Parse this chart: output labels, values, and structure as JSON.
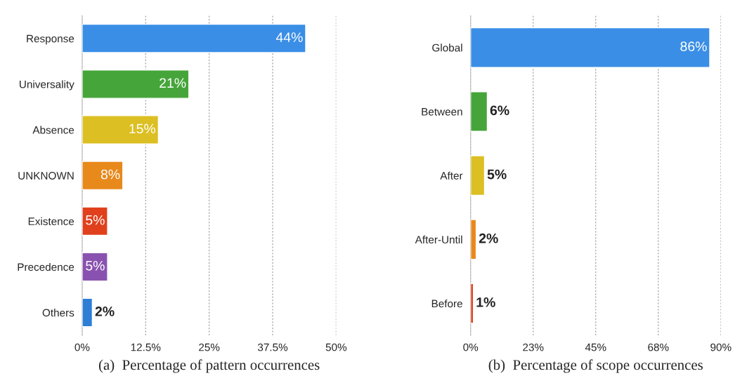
{
  "chart_data": [
    {
      "type": "bar",
      "orientation": "horizontal",
      "categories": [
        "Response",
        "Universality",
        "Absence",
        "UNKNOWN",
        "Existence",
        "Precedence",
        "Others"
      ],
      "values": [
        44,
        21,
        15,
        8,
        5,
        5,
        2
      ],
      "colors": [
        "#3a8ee6",
        "#46a53a",
        "#dcbf22",
        "#e8891c",
        "#e0401c",
        "#8a52b0",
        "#2e7ed6"
      ],
      "value_labels": [
        "44%",
        "21%",
        "15%",
        "8%",
        "5%",
        "5%",
        "2%"
      ],
      "xlim": [
        0,
        50
      ],
      "xticks": [
        {
          "value": 0,
          "label": "0%"
        },
        {
          "value": 12.5,
          "label": "12.5%"
        },
        {
          "value": 25,
          "label": "25%"
        },
        {
          "value": 37.5,
          "label": "37.5%"
        },
        {
          "value": 50,
          "label": "50%"
        }
      ],
      "grid": "x",
      "annotations": [
        "(a)  Percentage of pattern occurrences"
      ]
    },
    {
      "type": "bar",
      "orientation": "horizontal",
      "categories": [
        "Global",
        "Between",
        "After",
        "After-Until",
        "Before"
      ],
      "values": [
        86,
        6,
        5,
        2,
        1
      ],
      "colors": [
        "#3a8ee6",
        "#46a53a",
        "#dcbf22",
        "#e8891c",
        "#e0401c"
      ],
      "value_labels": [
        "86%",
        "6%",
        "5%",
        "2%",
        "1%"
      ],
      "xlim": [
        0,
        90
      ],
      "xticks": [
        {
          "value": 0,
          "label": "0%"
        },
        {
          "value": 22.5,
          "label": "23%"
        },
        {
          "value": 45,
          "label": "45%"
        },
        {
          "value": 67.5,
          "label": "68%"
        },
        {
          "value": 90,
          "label": "90%"
        }
      ],
      "grid": "x",
      "annotations": [
        "(b)  Percentage of scope occurrences"
      ]
    }
  ]
}
